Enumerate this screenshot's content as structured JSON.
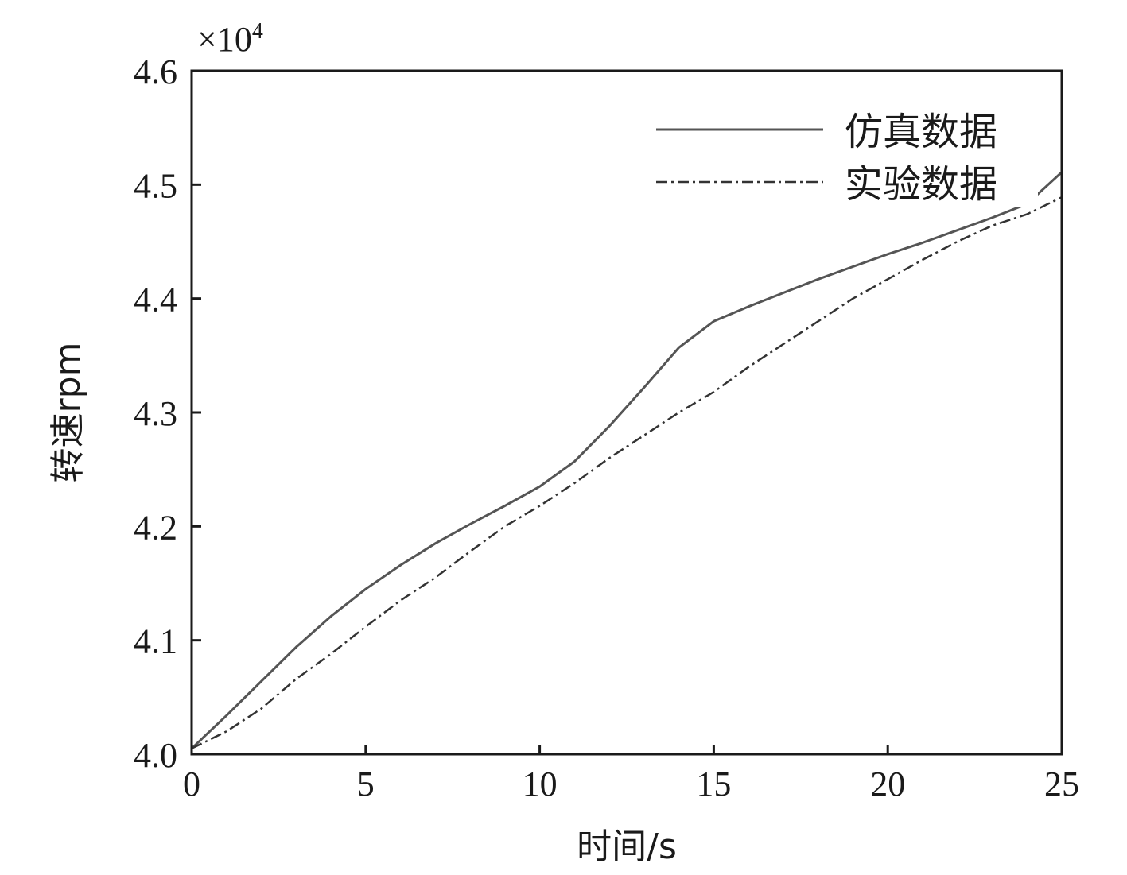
{
  "chart_data": {
    "type": "line",
    "title": "",
    "xlabel": "时间/s",
    "ylabel": "转速rpm",
    "y_multiplier": "×10",
    "y_multiplier_exponent": "4",
    "xlim": [
      0,
      25
    ],
    "ylim": [
      4.0,
      4.6
    ],
    "xticks": [
      0,
      5,
      10,
      15,
      20,
      25
    ],
    "yticks": [
      4.0,
      4.1,
      4.2,
      4.3,
      4.4,
      4.5,
      4.6
    ],
    "ytick_labels": [
      "4.0",
      "4.1",
      "4.2",
      "4.3",
      "4.4",
      "4.5",
      "4.6"
    ],
    "grid": false,
    "legend_position": "top-right",
    "series": [
      {
        "name": "仿真数据",
        "style": "solid",
        "color": "#555555",
        "x": [
          0,
          1,
          2,
          3,
          4,
          5,
          6,
          7,
          8,
          9,
          10,
          11,
          12,
          13,
          14,
          15,
          16,
          17,
          18,
          19,
          20,
          21,
          22,
          23,
          24,
          25
        ],
        "y": [
          4.005,
          4.034,
          4.064,
          4.094,
          4.121,
          4.145,
          4.166,
          4.185,
          4.202,
          4.218,
          4.235,
          4.257,
          4.288,
          4.322,
          4.357,
          4.38,
          4.393,
          4.405,
          4.417,
          4.428,
          4.439,
          4.449,
          4.46,
          4.471,
          4.483,
          4.511
        ]
      },
      {
        "name": "实验数据",
        "style": "dashdot",
        "color": "#333333",
        "x": [
          0,
          1,
          2,
          3,
          4,
          5,
          6,
          7,
          8,
          9,
          10,
          11,
          12,
          13,
          14,
          15,
          16,
          17,
          18,
          19,
          20,
          21,
          22,
          23,
          24,
          25
        ],
        "y": [
          4.005,
          4.02,
          4.04,
          4.066,
          4.088,
          4.112,
          4.135,
          4.155,
          4.178,
          4.2,
          4.218,
          4.238,
          4.26,
          4.28,
          4.3,
          4.318,
          4.34,
          4.36,
          4.38,
          4.4,
          4.417,
          4.434,
          4.45,
          4.464,
          4.474,
          4.489
        ]
      }
    ]
  }
}
